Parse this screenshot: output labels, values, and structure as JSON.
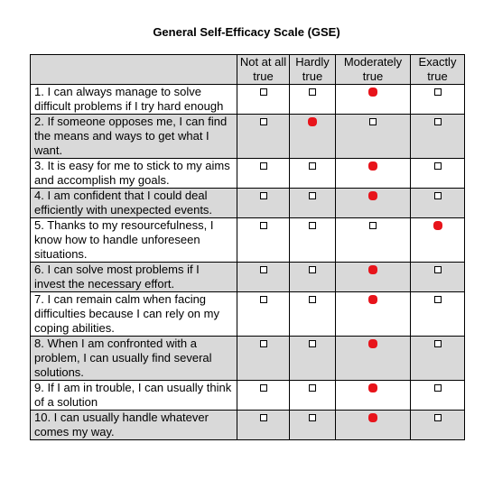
{
  "title": "General Self-Efficacy Scale (GSE)",
  "table": {
    "columns": [
      "Not at all true",
      "Hardly true",
      "Moderately true",
      "Exactly true"
    ],
    "rows": [
      {
        "statement": "1. I can always manage to solve difficult problems if I try hard enough",
        "answer": "Moderately true"
      },
      {
        "statement": "2. If someone opposes me, I can find the means and ways to get what I want.",
        "answer": "Hardly true"
      },
      {
        "statement": "3. It is easy for me to stick to my aims and accomplish my goals.",
        "answer": "Moderately true"
      },
      {
        "statement": "4. I am confident that I could deal efficiently with unexpected events.",
        "answer": "Moderately true"
      },
      {
        "statement": "5. Thanks to my resourcefulness, I know how to handle unforeseen situations.",
        "answer": "Exactly true"
      },
      {
        "statement": "6. I can solve most problems if I invest the necessary effort.",
        "answer": "Moderately true"
      },
      {
        "statement": "7. I can remain calm when facing difficulties because I can rely on my coping abilities.",
        "answer": "Moderately true"
      },
      {
        "statement": "8. When I am confronted with a problem, I can usually find several solutions.",
        "answer": "Moderately true"
      },
      {
        "statement": "9. If I am in trouble, I can usually think of a solution",
        "answer": "Moderately true"
      },
      {
        "statement": "10. I can usually handle whatever comes my way.",
        "answer": "Moderately true"
      }
    ]
  }
}
